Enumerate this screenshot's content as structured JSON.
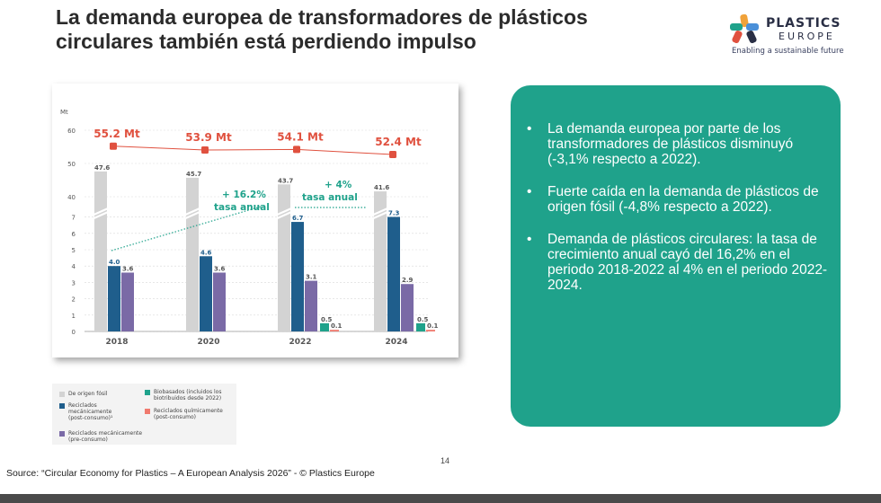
{
  "title": "La demanda europea de transformadores de plásticos circulares también está perdiendo impulso",
  "logo": {
    "word1": "PLASTICS",
    "word2": "EUROPE",
    "tagline": "Enabling a sustainable future"
  },
  "bullets": [
    "La demanda europea por parte de los transformadores de plásticos disminuyó (-3,1% respecto a 2022).",
    "Fuerte caída en la demanda de plásticos de origen fósil (-4,8% respecto a 2022).",
    "Demanda de plásticos circulares: la tasa de crecimiento anual cayó del 16,2% en el periodo 2018-2022 al 4% en el periodo 2022-2024."
  ],
  "bullet_symbol": "•",
  "page_number": "14",
  "source": "Source: “Circular Economy for Plastics – A European Analysis 2026” - © Plastics Europe",
  "legend": [
    {
      "label": "De origen fósil",
      "color": "#d3d3d3"
    },
    {
      "label": "Reciclados\nmecánicamente\n(post-consumo)¹",
      "color": "#1f5e8c"
    },
    {
      "label": "Reciclados mecánicamente\n(pre-consumo)",
      "color": "#7a6aa6"
    },
    {
      "label": "Biobasados (incluidos los\nbiotribuidos desde 2022)",
      "color": "#1fa28b"
    },
    {
      "label": "Reciclados químicamente\n(post-consumo)",
      "color": "#f07a6e"
    }
  ],
  "chart_data": {
    "type": "bar",
    "ylabel": "Mt",
    "categories": [
      "2018",
      "2020",
      "2022",
      "2024"
    ],
    "y_ticks": [
      "0",
      "1",
      "2",
      "3",
      "4",
      "5",
      "6",
      "7",
      "40",
      "50",
      "60"
    ],
    "ylim": [
      0,
      60
    ],
    "axis_break": "between 7 and 40",
    "series": [
      {
        "key": "fossil",
        "color": "#d3d3d3",
        "values": [
          47.6,
          45.7,
          43.7,
          41.6
        ],
        "labels": [
          "47.6",
          "45.7",
          "43.7",
          "41.6"
        ]
      },
      {
        "key": "mech_post",
        "color": "#1f5e8c",
        "values": [
          4.0,
          4.6,
          6.7,
          7.3
        ],
        "labels": [
          "4.0",
          "4.6",
          "6.7",
          "7.3"
        ]
      },
      {
        "key": "mech_pre",
        "color": "#7a6aa6",
        "values": [
          3.6,
          3.6,
          3.1,
          2.9
        ],
        "labels": [
          "3.6",
          "3.6",
          "3.1",
          "2.9"
        ]
      },
      {
        "key": "bio",
        "color": "#1fa28b",
        "values": [
          null,
          null,
          0.5,
          0.5
        ],
        "labels": [
          "",
          "",
          "0.5",
          "0.5"
        ]
      },
      {
        "key": "chem_post",
        "color": "#f07a6e",
        "values": [
          null,
          null,
          0.1,
          0.1
        ],
        "labels": [
          "",
          "",
          "0.1",
          "0.1"
        ]
      }
    ],
    "total_line": {
      "color": "#e0513f",
      "values": [
        55.2,
        53.9,
        54.1,
        52.4
      ],
      "labels": [
        "55.2 Mt",
        "53.9 Mt",
        "54.1 Mt",
        "52.4 Mt"
      ]
    },
    "annotations": [
      {
        "text_line1": "+ 16.2%",
        "text_line2": "tasa anual",
        "color": "#1fa28b"
      },
      {
        "text_line1": "+ 4%",
        "text_line2": "tasa anual",
        "color": "#1fa28b"
      }
    ]
  }
}
